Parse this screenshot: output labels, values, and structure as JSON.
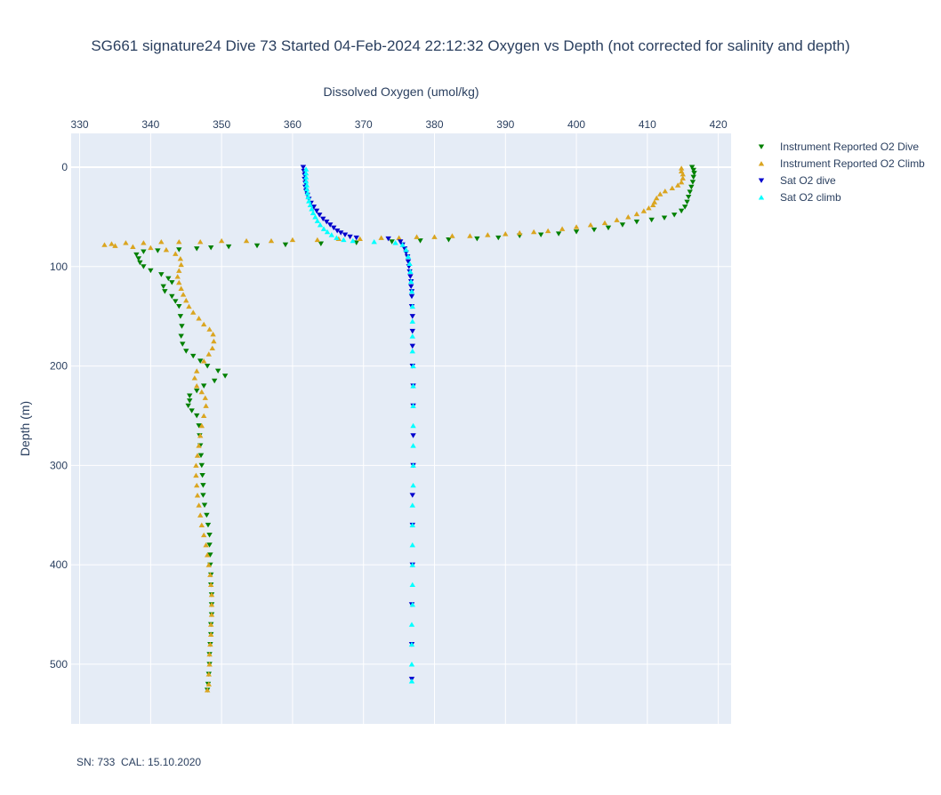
{
  "chart_data": {
    "type": "scatter",
    "title": "SG661 signature24 Dive 73 Started 04-Feb-2024 22:12:32  Oxygen vs Depth (not corrected for salinity and depth)",
    "xlabel": "Dissolved Oxygen (umol/kg)",
    "ylabel": "Depth (m)",
    "x_axis_side": "top",
    "xlim": [
      328.8,
      421.8
    ],
    "ylim": [
      560,
      -34
    ],
    "y_reversed": true,
    "x_ticks": [
      330,
      340,
      350,
      360,
      370,
      380,
      390,
      400,
      410,
      420
    ],
    "y_ticks": [
      0,
      100,
      200,
      300,
      400,
      500
    ],
    "grid": true,
    "legend_position": "top-right",
    "colors": {
      "plot_bg": "#e5ecf6",
      "grid": "#ffffff"
    },
    "series": [
      {
        "name": "Instrument Reported O2 Dive",
        "color": "#008000",
        "marker": "triangle-down",
        "points": [
          [
            416.3,
            0
          ],
          [
            416.5,
            3
          ],
          [
            416.6,
            6
          ],
          [
            416.5,
            10
          ],
          [
            416.4,
            15
          ],
          [
            416.2,
            20
          ],
          [
            416.0,
            25
          ],
          [
            415.8,
            30
          ],
          [
            415.6,
            35
          ],
          [
            415.3,
            40
          ],
          [
            414.8,
            44
          ],
          [
            413.8,
            48
          ],
          [
            412.4,
            51
          ],
          [
            410.6,
            53
          ],
          [
            408.5,
            55
          ],
          [
            406.5,
            58
          ],
          [
            404.5,
            61
          ],
          [
            402.5,
            63
          ],
          [
            400.0,
            65
          ],
          [
            397.5,
            67
          ],
          [
            395.0,
            68
          ],
          [
            392.0,
            69
          ],
          [
            389.0,
            71
          ],
          [
            386.0,
            72
          ],
          [
            382.0,
            73
          ],
          [
            378.0,
            74
          ],
          [
            374.0,
            75
          ],
          [
            369.0,
            76
          ],
          [
            364.0,
            77
          ],
          [
            359.0,
            78
          ],
          [
            355.0,
            79
          ],
          [
            351.0,
            80
          ],
          [
            348.5,
            81
          ],
          [
            346.5,
            82
          ],
          [
            344.0,
            83
          ],
          [
            341.0,
            84
          ],
          [
            339.0,
            85
          ],
          [
            338.0,
            88
          ],
          [
            338.3,
            92
          ],
          [
            338.5,
            96
          ],
          [
            339.0,
            100
          ],
          [
            340.0,
            104
          ],
          [
            341.5,
            108
          ],
          [
            342.5,
            112
          ],
          [
            343.0,
            116
          ],
          [
            341.8,
            120
          ],
          [
            342.0,
            125
          ],
          [
            343.0,
            130
          ],
          [
            343.5,
            135
          ],
          [
            344.0,
            140
          ],
          [
            344.2,
            150
          ],
          [
            344.4,
            160
          ],
          [
            344.3,
            170
          ],
          [
            344.5,
            178
          ],
          [
            345.0,
            185
          ],
          [
            346.0,
            190
          ],
          [
            347.0,
            195
          ],
          [
            348.0,
            200
          ],
          [
            349.5,
            205
          ],
          [
            350.5,
            210
          ],
          [
            349.0,
            215
          ],
          [
            347.5,
            220
          ],
          [
            346.5,
            225
          ],
          [
            345.5,
            230
          ],
          [
            345.5,
            235
          ],
          [
            345.3,
            240
          ],
          [
            345.8,
            245
          ],
          [
            346.5,
            250
          ],
          [
            346.8,
            260
          ],
          [
            346.9,
            270
          ],
          [
            347.0,
            280
          ],
          [
            347.1,
            290
          ],
          [
            347.2,
            300
          ],
          [
            347.3,
            310
          ],
          [
            347.4,
            320
          ],
          [
            347.4,
            330
          ],
          [
            347.6,
            340
          ],
          [
            347.9,
            350
          ],
          [
            348.1,
            360
          ],
          [
            348.3,
            370
          ],
          [
            348.3,
            380
          ],
          [
            348.4,
            390
          ],
          [
            348.4,
            400
          ],
          [
            348.5,
            410
          ],
          [
            348.5,
            420
          ],
          [
            348.6,
            430
          ],
          [
            348.6,
            440
          ],
          [
            348.6,
            450
          ],
          [
            348.5,
            460
          ],
          [
            348.5,
            470
          ],
          [
            348.4,
            480
          ],
          [
            348.3,
            490
          ],
          [
            348.3,
            500
          ],
          [
            348.2,
            510
          ],
          [
            348.1,
            520
          ],
          [
            348.0,
            526
          ]
        ]
      },
      {
        "name": "Instrument Reported O2 Climb",
        "color": "#daa520",
        "marker": "triangle-up",
        "points": [
          [
            348.0,
            526
          ],
          [
            348.2,
            520
          ],
          [
            348.2,
            510
          ],
          [
            348.3,
            500
          ],
          [
            348.3,
            490
          ],
          [
            348.4,
            480
          ],
          [
            348.5,
            470
          ],
          [
            348.5,
            460
          ],
          [
            348.6,
            450
          ],
          [
            348.6,
            440
          ],
          [
            348.6,
            430
          ],
          [
            348.5,
            420
          ],
          [
            348.4,
            410
          ],
          [
            348.2,
            400
          ],
          [
            348.0,
            390
          ],
          [
            347.8,
            380
          ],
          [
            347.5,
            370
          ],
          [
            347.2,
            360
          ],
          [
            347.0,
            350
          ],
          [
            346.8,
            340
          ],
          [
            346.6,
            330
          ],
          [
            346.5,
            320
          ],
          [
            346.4,
            310
          ],
          [
            346.4,
            300
          ],
          [
            346.6,
            290
          ],
          [
            346.8,
            280
          ],
          [
            347.0,
            270
          ],
          [
            347.2,
            260
          ],
          [
            347.5,
            250
          ],
          [
            347.8,
            240
          ],
          [
            347.7,
            232
          ],
          [
            347.2,
            226
          ],
          [
            346.5,
            220
          ],
          [
            346.2,
            212
          ],
          [
            346.5,
            205
          ],
          [
            347.5,
            195
          ],
          [
            348.2,
            188
          ],
          [
            348.7,
            182
          ],
          [
            348.9,
            175
          ],
          [
            348.8,
            168
          ],
          [
            348.3,
            163
          ],
          [
            347.5,
            158
          ],
          [
            346.8,
            152
          ],
          [
            346.0,
            146
          ],
          [
            345.4,
            140
          ],
          [
            345.0,
            134
          ],
          [
            344.6,
            128
          ],
          [
            344.3,
            122
          ],
          [
            344.0,
            116
          ],
          [
            343.8,
            110
          ],
          [
            344.0,
            104
          ],
          [
            344.3,
            98
          ],
          [
            344.2,
            92
          ],
          [
            343.5,
            87
          ],
          [
            342.2,
            83
          ],
          [
            340.0,
            81
          ],
          [
            337.5,
            80
          ],
          [
            335.0,
            79
          ],
          [
            333.5,
            78
          ],
          [
            334.5,
            77
          ],
          [
            336.5,
            76
          ],
          [
            339.0,
            76
          ],
          [
            341.5,
            75
          ],
          [
            344.0,
            75
          ],
          [
            347.0,
            75
          ],
          [
            350.0,
            74
          ],
          [
            353.5,
            74
          ],
          [
            357.0,
            74
          ],
          [
            360.0,
            73
          ],
          [
            363.5,
            73
          ],
          [
            366.5,
            72
          ],
          [
            369.5,
            72
          ],
          [
            372.5,
            71
          ],
          [
            375.0,
            71
          ],
          [
            377.5,
            70
          ],
          [
            380.0,
            70
          ],
          [
            382.5,
            69
          ],
          [
            385.0,
            69
          ],
          [
            387.5,
            68
          ],
          [
            390.0,
            67
          ],
          [
            392.0,
            66
          ],
          [
            394.0,
            65
          ],
          [
            396.0,
            64
          ],
          [
            398.0,
            62
          ],
          [
            400.0,
            60
          ],
          [
            402.0,
            58
          ],
          [
            404.0,
            56
          ],
          [
            405.7,
            53
          ],
          [
            407.3,
            50
          ],
          [
            408.5,
            47
          ],
          [
            409.5,
            44
          ],
          [
            410.2,
            41
          ],
          [
            410.8,
            38
          ],
          [
            411.0,
            35
          ],
          [
            411.3,
            31
          ],
          [
            411.8,
            27
          ],
          [
            412.5,
            24
          ],
          [
            413.5,
            21
          ],
          [
            414.3,
            18
          ],
          [
            414.8,
            15
          ],
          [
            415.0,
            11
          ],
          [
            415.0,
            7
          ],
          [
            414.8,
            4
          ],
          [
            414.8,
            1
          ]
        ]
      },
      {
        "name": "Sat O2 dive",
        "color": "#0000cd",
        "marker": "triangle-down",
        "points": [
          [
            361.5,
            0
          ],
          [
            361.6,
            4
          ],
          [
            361.7,
            8
          ],
          [
            361.7,
            12
          ],
          [
            361.8,
            16
          ],
          [
            361.8,
            20
          ],
          [
            361.9,
            24
          ],
          [
            362.1,
            28
          ],
          [
            362.3,
            32
          ],
          [
            362.6,
            36
          ],
          [
            363.0,
            40
          ],
          [
            363.4,
            44
          ],
          [
            363.8,
            48
          ],
          [
            364.3,
            52
          ],
          [
            364.8,
            55
          ],
          [
            365.3,
            58
          ],
          [
            365.8,
            61
          ],
          [
            366.3,
            64
          ],
          [
            366.8,
            66
          ],
          [
            367.4,
            68
          ],
          [
            368.1,
            70
          ],
          [
            369.0,
            71
          ],
          [
            373.5,
            72
          ],
          [
            375.2,
            75
          ],
          [
            375.5,
            78
          ],
          [
            375.8,
            82
          ],
          [
            376.0,
            86
          ],
          [
            376.2,
            90
          ],
          [
            376.3,
            95
          ],
          [
            376.4,
            100
          ],
          [
            376.5,
            105
          ],
          [
            376.6,
            110
          ],
          [
            376.7,
            115
          ],
          [
            376.7,
            120
          ],
          [
            376.8,
            125
          ],
          [
            376.8,
            130
          ],
          [
            376.8,
            140
          ],
          [
            376.9,
            150
          ],
          [
            376.9,
            165
          ],
          [
            376.9,
            180
          ],
          [
            376.9,
            200
          ],
          [
            377.0,
            220
          ],
          [
            377.0,
            240
          ],
          [
            377.0,
            270
          ],
          [
            377.0,
            300
          ],
          [
            376.9,
            330
          ],
          [
            376.9,
            360
          ],
          [
            376.9,
            400
          ],
          [
            376.8,
            440
          ],
          [
            376.8,
            480
          ],
          [
            376.8,
            515
          ]
        ]
      },
      {
        "name": "Sat O2 climb",
        "color": "#00ffff",
        "marker": "triangle-up",
        "points": [
          [
            376.8,
            517
          ],
          [
            376.8,
            500
          ],
          [
            376.8,
            480
          ],
          [
            376.8,
            460
          ],
          [
            376.9,
            440
          ],
          [
            376.9,
            420
          ],
          [
            376.9,
            400
          ],
          [
            376.9,
            380
          ],
          [
            376.9,
            360
          ],
          [
            376.9,
            340
          ],
          [
            377.0,
            320
          ],
          [
            377.0,
            300
          ],
          [
            377.0,
            280
          ],
          [
            377.0,
            260
          ],
          [
            377.0,
            240
          ],
          [
            377.0,
            220
          ],
          [
            377.0,
            200
          ],
          [
            376.9,
            185
          ],
          [
            376.9,
            170
          ],
          [
            376.9,
            155
          ],
          [
            376.9,
            140
          ],
          [
            376.8,
            125
          ],
          [
            376.7,
            115
          ],
          [
            376.6,
            105
          ],
          [
            376.5,
            97
          ],
          [
            376.3,
            90
          ],
          [
            376.0,
            83
          ],
          [
            375.5,
            78
          ],
          [
            374.5,
            76
          ],
          [
            371.5,
            75
          ],
          [
            368.5,
            74
          ],
          [
            367.2,
            73
          ],
          [
            366.2,
            71
          ],
          [
            365.5,
            68
          ],
          [
            364.9,
            65
          ],
          [
            364.4,
            62
          ],
          [
            363.9,
            58
          ],
          [
            363.5,
            54
          ],
          [
            363.2,
            50
          ],
          [
            362.9,
            46
          ],
          [
            362.7,
            42
          ],
          [
            362.5,
            38
          ],
          [
            362.3,
            34
          ],
          [
            362.2,
            30
          ],
          [
            362.1,
            26
          ],
          [
            362.0,
            22
          ],
          [
            362.0,
            18
          ],
          [
            361.9,
            14
          ],
          [
            361.9,
            10
          ],
          [
            361.9,
            6
          ],
          [
            361.9,
            2
          ]
        ]
      }
    ]
  },
  "footnote": "SN: 733  CAL: 15.10.2020"
}
